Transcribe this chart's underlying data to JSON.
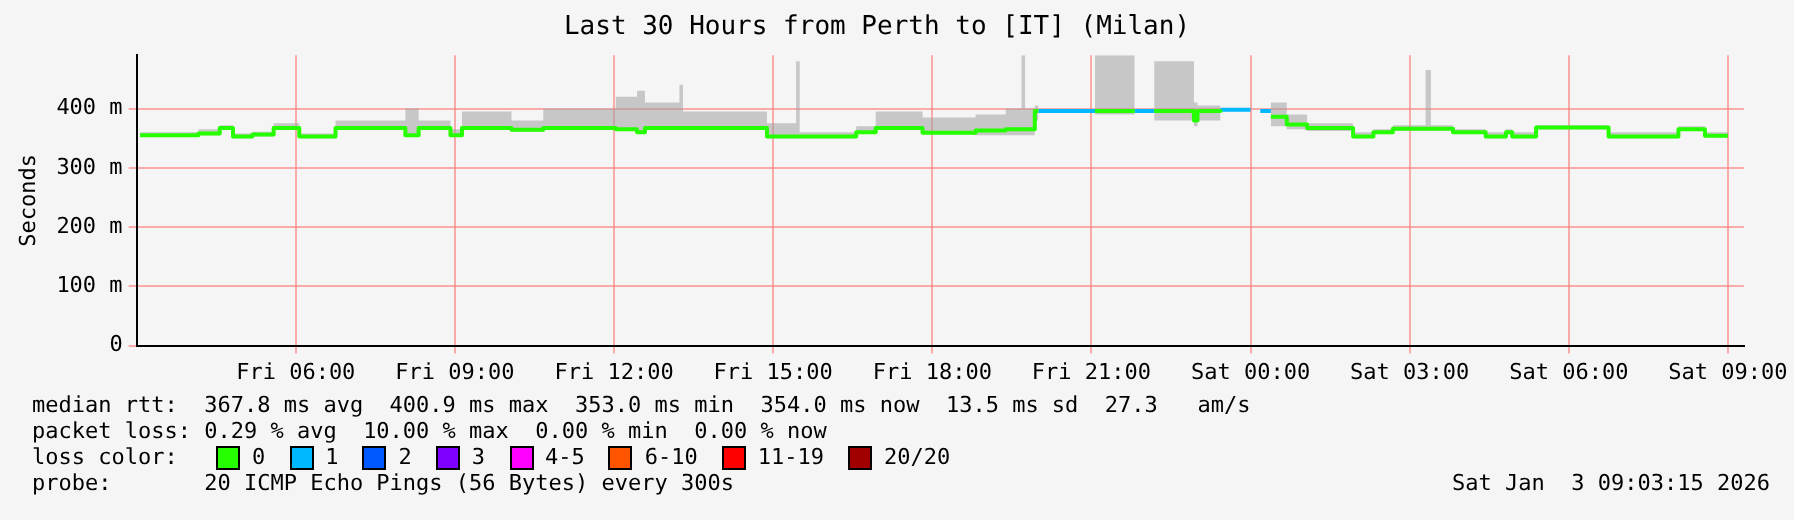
{
  "chart_data": {
    "type": "step",
    "title": "Last 30 Hours from Perth to [IT] (Milan)",
    "ylabel": "Seconds",
    "xlim": [
      "2026-01-02T03:00",
      "2026-01-03T09:18"
    ],
    "xticks": [
      {
        "value": "2026-01-02T06:00",
        "label": "Fri 06:00"
      },
      {
        "value": "2026-01-02T09:00",
        "label": "Fri 09:00"
      },
      {
        "value": "2026-01-02T12:00",
        "label": "Fri 12:00"
      },
      {
        "value": "2026-01-02T15:00",
        "label": "Fri 15:00"
      },
      {
        "value": "2026-01-02T18:00",
        "label": "Fri 18:00"
      },
      {
        "value": "2026-01-02T21:00",
        "label": "Fri 21:00"
      },
      {
        "value": "2026-01-03T00:00",
        "label": "Sat 00:00"
      },
      {
        "value": "2026-01-03T03:00",
        "label": "Sat 03:00"
      },
      {
        "value": "2026-01-03T06:00",
        "label": "Sat 06:00"
      },
      {
        "value": "2026-01-03T09:00",
        "label": "Sat 09:00"
      }
    ],
    "ylim": [
      0,
      490
    ],
    "yticks": [
      0,
      {
        "value": 100,
        "label": "100 m"
      },
      {
        "value": 200,
        "label": "200 m"
      },
      {
        "value": 300,
        "label": "300 m"
      },
      {
        "value": 400,
        "label": "400 m"
      }
    ],
    "grid": true,
    "legend": "bottom",
    "legend_title": "loss color:",
    "annotations": [
      "median rtt:  367.8 ms avg  400.9 ms max  353.0 ms min  354.0 ms now  13.5 ms sd  27.3   am/s",
      "packet loss: 0.29 % avg  10.00 % max  0.00 % min  0.00 % now",
      "probe:       20 ICMP Echo Pings (56 Bytes) every 300s",
      "Sat Jan  3 09:03:15 2026"
    ],
    "series": [
      {
        "name": "0",
        "color": "#26ff00",
        "x": [
          "2026-01-02T03:04",
          "2026-01-02T04:10",
          "2026-01-02T04:34",
          "2026-01-02T04:49",
          "2026-01-02T05:11",
          "2026-01-02T05:35",
          "2026-01-02T06:04",
          "2026-01-02T06:45",
          "2026-01-02T08:04",
          "2026-01-02T08:19",
          "2026-01-02T08:55",
          "2026-01-02T09:08",
          "2026-01-02T10:04",
          "2026-01-02T10:40",
          "2026-01-02T12:02",
          "2026-01-02T12:26",
          "2026-01-02T12:35",
          "2026-01-02T13:14",
          "2026-01-02T13:18",
          "2026-01-02T14:53",
          "2026-01-02T15:26",
          "2026-01-02T15:30",
          "2026-01-02T16:34",
          "2026-01-02T16:56",
          "2026-01-02T17:49",
          "2026-01-02T18:49",
          "2026-01-02T19:23",
          "2026-01-02T19:41",
          "2026-01-02T19:45",
          "2026-01-02T19:56",
          "2026-01-02T20:00",
          "2026-01-02T20:01",
          "2026-01-02T21:04",
          "2026-01-02T21:49",
          "2026-01-02T21:50",
          "2026-01-02T22:11",
          "2026-01-02T22:56",
          "2026-01-02T23:00",
          "2026-01-02T23:26",
          "2026-01-02T23:27",
          "2026-01-03T00:23",
          "2026-01-03T00:41",
          "2026-01-03T01:04",
          "2026-01-03T01:56",
          "2026-01-03T02:19",
          "2026-01-03T02:41",
          "2026-01-03T03:18",
          "2026-01-03T03:24",
          "2026-01-03T03:49",
          "2026-01-03T04:26",
          "2026-01-03T04:49",
          "2026-01-03T04:56",
          "2026-01-03T05:23",
          "2026-01-03T06:45",
          "2026-01-03T08:04",
          "2026-01-03T08:34",
          "2026-01-03T09:00"
        ],
        "values": [
          355,
          358,
          367,
          353,
          356,
          367,
          353,
          367,
          355,
          367,
          355,
          367,
          364,
          367,
          365,
          360,
          367,
          367,
          367,
          353,
          353,
          353,
          360,
          367,
          359,
          363,
          365,
          365,
          365,
          396,
          396,
          null,
          396,
          396,
          null,
          396,
          380,
          396,
          398,
          null,
          386,
          373,
          367,
          353,
          360,
          366,
          366,
          366,
          360,
          353,
          360,
          353,
          368,
          353,
          365,
          354,
          354
        ],
        "lower": [
          352,
          355,
          364,
          350,
          353,
          364,
          350,
          364,
          352,
          364,
          352,
          364,
          361,
          364,
          362,
          357,
          364,
          364,
          364,
          350,
          350,
          350,
          357,
          364,
          356,
          355,
          355,
          355,
          355,
          380,
          380,
          null,
          390,
          390,
          null,
          380,
          370,
          380,
          390,
          null,
          370,
          365,
          362,
          350,
          357,
          363,
          363,
          363,
          357,
          350,
          357,
          350,
          365,
          350,
          362,
          351,
          351
        ],
        "upper": [
          360,
          365,
          372,
          358,
          361,
          375,
          358,
          380,
          400,
          380,
          365,
          395,
          380,
          400,
          420,
          430,
          410,
          440,
          395,
          375,
          480,
          360,
          370,
          395,
          385,
          390,
          400,
          490,
          400,
          405,
          405,
          null,
          490,
          490,
          null,
          480,
          410,
          405,
          405,
          null,
          410,
          390,
          375,
          360,
          365,
          372,
          465,
          372,
          365,
          360,
          365,
          360,
          372,
          360,
          370,
          360,
          360
        ]
      },
      {
        "name": "1",
        "color": "#00b8ff",
        "x": [
          "2026-01-02T20:00",
          "2026-01-02T21:04",
          "2026-01-02T21:05",
          "2026-01-02T21:49",
          "2026-01-02T22:11",
          "2026-01-02T22:12",
          "2026-01-02T23:26",
          "2026-01-03T00:00",
          "2026-01-03T00:01",
          "2026-01-03T00:11",
          "2026-01-03T00:23"
        ],
        "values": [
          396,
          396,
          null,
          396,
          396,
          null,
          398,
          398,
          null,
          396,
          396
        ]
      },
      {
        "name": "2",
        "color": "#0059ff"
      },
      {
        "name": "3",
        "color": "#7e00ff"
      },
      {
        "name": "4-5",
        "color": "#ff00ff"
      },
      {
        "name": "6-10",
        "color": "#ff5500"
      },
      {
        "name": "11-19",
        "color": "#ff0000"
      },
      {
        "name": "20/20",
        "color": "#a10000"
      }
    ]
  }
}
